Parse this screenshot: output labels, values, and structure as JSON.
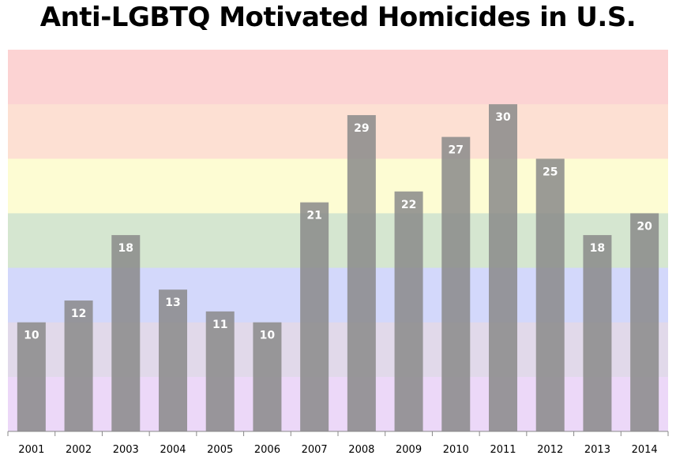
{
  "chart_data": {
    "type": "bar",
    "title": "Anti-LGBTQ Motivated Homicides in U.S.",
    "xlabel": "",
    "ylabel": "",
    "categories": [
      "2001",
      "2002",
      "2003",
      "2004",
      "2005",
      "2006",
      "2007",
      "2008",
      "2009",
      "2010",
      "2011",
      "2012",
      "2013",
      "2014"
    ],
    "values": [
      10,
      12,
      18,
      13,
      11,
      10,
      21,
      29,
      22,
      27,
      30,
      25,
      18,
      20
    ],
    "data_labels": [
      "10",
      "12",
      "18",
      "13",
      "11",
      "10",
      "21",
      "29",
      "22",
      "27",
      "30",
      "25",
      "18",
      "20"
    ],
    "ylim": [
      0,
      35
    ],
    "grid": false,
    "legend": "none",
    "bar_color": "#8a8a8a",
    "background_bands": [
      "#fcd3d3",
      "#fde0d3",
      "#fdfcd3",
      "#d5e6d0",
      "#d3d8fb",
      "#e1d9ea",
      "#ecd8f8"
    ]
  }
}
